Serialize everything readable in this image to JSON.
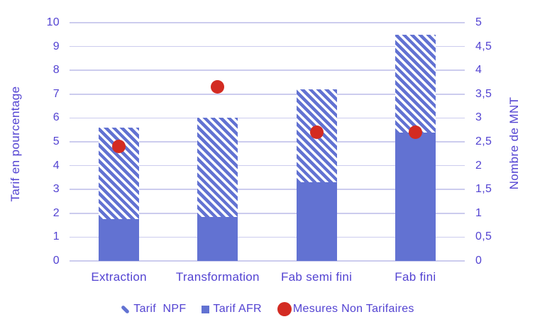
{
  "chart_data": {
    "type": "bar",
    "subtype": "stacked-columns-with-secondary-axis-points",
    "categories": [
      "Extraction",
      "Transformation",
      "Fab semi fini",
      "Fab fini"
    ],
    "series": [
      {
        "name": "Tarif NPF",
        "style": "hatched",
        "axis": "left",
        "stack_top": [
          5.6,
          6.0,
          7.2,
          9.5
        ]
      },
      {
        "name": "Tarif AFR",
        "style": "solid",
        "axis": "left",
        "values": [
          1.75,
          1.85,
          3.3,
          5.4
        ]
      },
      {
        "name": "Mesures Non Tarifaires",
        "style": "point",
        "axis": "right",
        "values": [
          2.4,
          3.65,
          2.7,
          2.7
        ]
      }
    ],
    "left_axis": {
      "label": "Tarif en pourcentage",
      "min": 0,
      "max": 10,
      "ticks": [
        "0",
        "1",
        "2",
        "3",
        "4",
        "5",
        "6",
        "7",
        "8",
        "9",
        "10"
      ]
    },
    "right_axis": {
      "label": "Nombre de MNT",
      "min": 0,
      "max": 5,
      "ticks": [
        "0",
        "0,5",
        "1",
        "1,5",
        "2",
        "2,5",
        "3",
        "3,5",
        "4",
        "4,5",
        "5"
      ]
    },
    "grid": true,
    "legend_position": "bottom"
  },
  "legend": {
    "items": [
      {
        "label": "Tarif  NPF",
        "marker": "hatched-swatch"
      },
      {
        "label": "Tarif AFR",
        "marker": "solid-square"
      },
      {
        "label": "Mesures Non Tarifaires",
        "marker": "red-circle"
      }
    ]
  },
  "colors": {
    "bar_blue": "#6272d2",
    "dot_red": "#d32b22",
    "text": "#5343d2",
    "gridline": "#ccccee",
    "background": "#ffffff"
  }
}
